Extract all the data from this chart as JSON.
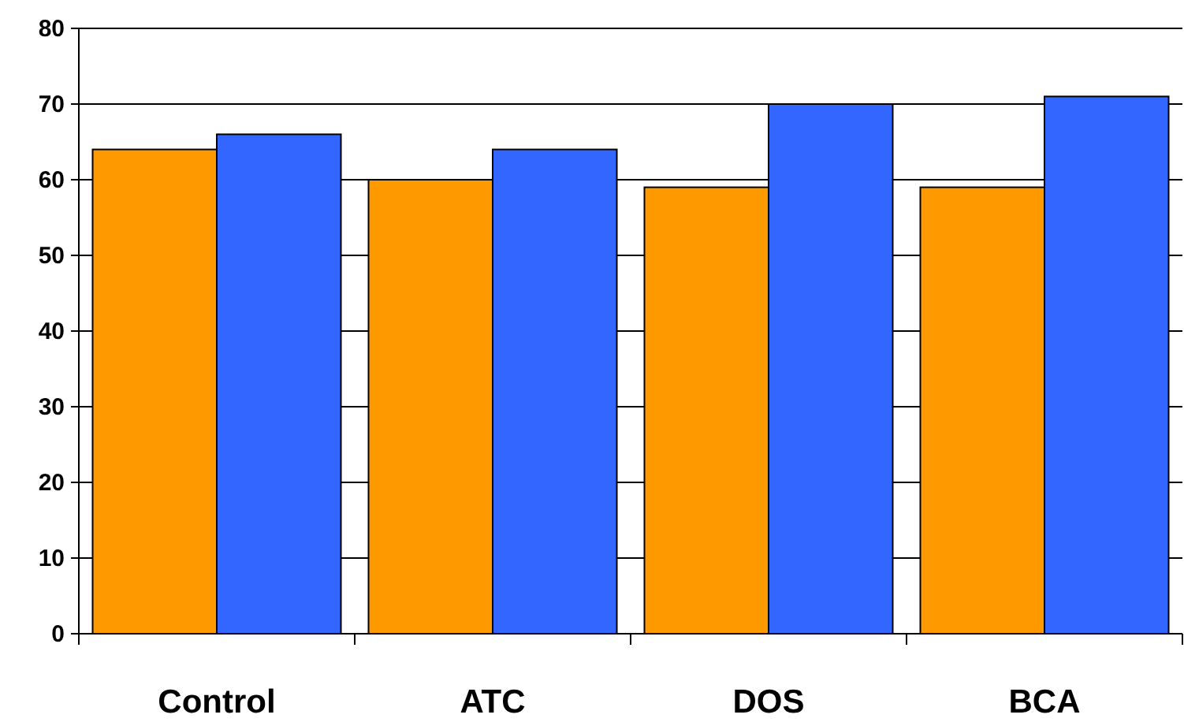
{
  "chart_data": {
    "type": "bar",
    "categories": [
      "Control",
      "ATC",
      "DOS",
      "BCA"
    ],
    "series": [
      {
        "color": "#ff9900",
        "values": [
          64,
          60,
          59,
          59
        ]
      },
      {
        "color": "#3366ff",
        "values": [
          66,
          64,
          70,
          71
        ]
      }
    ],
    "ylim": [
      0,
      80
    ],
    "yticks": [
      0,
      10,
      20,
      30,
      40,
      50,
      60,
      70,
      80
    ],
    "grid": "y"
  }
}
